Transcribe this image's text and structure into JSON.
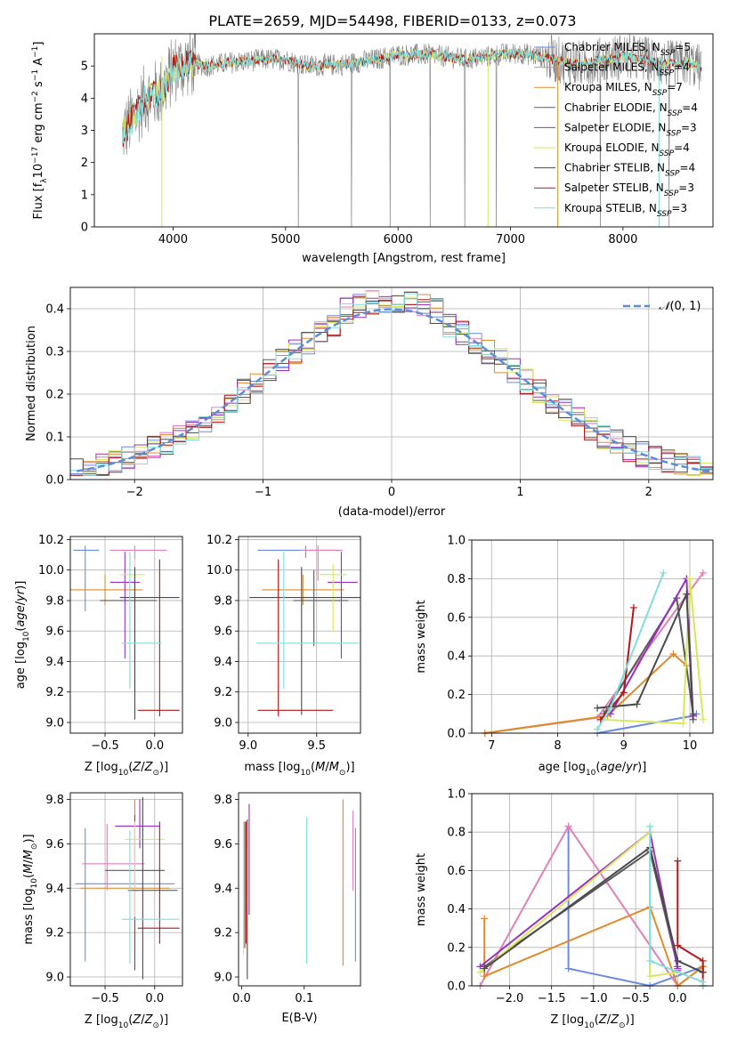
{
  "title": "PLATE=2659, MJD=54498, FIBERID=0133, z=0.073",
  "colors": {
    "Chabrier MILES": "#6a8be0",
    "Salpeter MILES": "#e07fb8",
    "Kroupa MILES": "#e08a2a",
    "Chabrier ELODIE": "#5a5a5a",
    "Salpeter ELODIE": "#9b30c0",
    "Kroupa ELODIE": "#d8e85a",
    "Chabrier STELIB": "#4a4a4a",
    "Salpeter STELIB": "#b01818",
    "Kroupa STELIB": "#7fdede",
    "data": "#808080",
    "normal": "#5b8dd9",
    "chabrier_elodie_alt": "#5a8a6a"
  },
  "chart_data": [
    {
      "id": "spectrum",
      "type": "line",
      "xlabel": "wavelength [Angstrom, rest frame]",
      "ylabel": "Flux [f",
      "xlim": [
        3300,
        8800
      ],
      "ylim": [
        0,
        6
      ],
      "xticks": [
        4000,
        5000,
        6000,
        7000,
        8000
      ],
      "yticks": [
        0,
        1,
        2,
        3,
        4,
        5
      ],
      "continuum": {
        "x": [
          3550,
          3650,
          3750,
          3900,
          4000,
          4150,
          4300,
          4500,
          4800,
          5000,
          5200,
          5500,
          5800,
          6000,
          6300,
          6600,
          6900,
          7100,
          7400,
          7600,
          8000,
          8200,
          8400,
          8600,
          8700
        ],
        "y": [
          2.9,
          3.4,
          4.0,
          4.2,
          4.9,
          5.1,
          5.0,
          5.1,
          5.2,
          5.2,
          5.0,
          5.05,
          5.2,
          5.35,
          5.35,
          5.2,
          5.35,
          5.4,
          5.2,
          5.05,
          5.3,
          5.2,
          5.05,
          5.1,
          4.9
        ]
      },
      "legend": [
        {
          "model": "Chabrier MILES",
          "label": "Chabrier MILES, N",
          "sub": "SSP",
          "tail": "=5"
        },
        {
          "model": "Salpeter MILES",
          "label": "Salpeter MILES, N",
          "sub": "SSP",
          "tail": "=4"
        },
        {
          "model": "Kroupa MILES",
          "label": "Kroupa MILES, N",
          "sub": "SSP",
          "tail": "=7"
        },
        {
          "model": "Chabrier ELODIE",
          "label": "Chabrier ELODIE, N",
          "sub": "SSP",
          "tail": "=4"
        },
        {
          "model": "Salpeter ELODIE",
          "label": "Salpeter ELODIE, N",
          "sub": "SSP",
          "tail": "=3"
        },
        {
          "model": "Kroupa ELODIE",
          "label": "Kroupa ELODIE, N",
          "sub": "SSP",
          "tail": "=4"
        },
        {
          "model": "Chabrier STELIB",
          "label": "Chabrier STELIB, N",
          "sub": "SSP",
          "tail": "=4"
        },
        {
          "model": "Salpeter STELIB",
          "label": "Salpeter STELIB, N",
          "sub": "SSP",
          "tail": "=3"
        },
        {
          "model": "Kroupa STELIB",
          "label": "Kroupa STELIB, N",
          "sub": "SSP",
          "tail": "=3"
        }
      ]
    },
    {
      "id": "residuals",
      "type": "line",
      "xlabel": "(data-model)/error",
      "ylabel": "Normed distribution",
      "xlim": [
        -2.5,
        2.5
      ],
      "ylim": [
        0,
        0.45
      ],
      "xticks": [
        -2,
        -1,
        0,
        1,
        2
      ],
      "yticks": [
        0.0,
        0.1,
        0.2,
        0.3,
        0.4
      ],
      "legend": "N(0,1)",
      "bin_width": 0.1,
      "bin_start": -2.5
    },
    {
      "id": "z_age",
      "type": "scatter",
      "xlabel": "Z [log",
      "ylabel": "age  [log",
      "xlim": [
        -0.85,
        0.28
      ],
      "ylim": [
        8.93,
        10.22
      ],
      "xticks": [
        -0.5,
        0.0
      ],
      "xticklabels": [
        "−0.5",
        "0.0"
      ],
      "yticks": [
        9.0,
        9.2,
        9.4,
        9.6,
        9.8,
        10.0,
        10.2
      ],
      "points": [
        {
          "model": "Chabrier MILES",
          "x": -0.7,
          "xerr": [
            0.12,
            0.14
          ],
          "y": 10.13,
          "yerr": [
            0.4,
            0.03
          ]
        },
        {
          "model": "Salpeter MILES",
          "x": -0.2,
          "xerr": [
            0.25,
            0.32
          ],
          "y": 10.13,
          "yerr": [
            0.1,
            0.03
          ]
        },
        {
          "model": "Kroupa MILES",
          "x": -0.5,
          "xerr": [
            0.35,
            0.38
          ],
          "y": 9.87,
          "yerr": [
            0.1,
            0.1
          ]
        },
        {
          "model": "Chabrier ELODIE",
          "x": -0.2,
          "xerr": [
            0.35,
            0.22
          ],
          "y": 9.8,
          "yerr": [
            0.6,
            0.2
          ]
        },
        {
          "model": "Salpeter ELODIE",
          "x": -0.3,
          "xerr": [
            0.15,
            0.15
          ],
          "y": 9.92,
          "yerr": [
            0.5,
            0.2
          ]
        },
        {
          "model": "Kroupa ELODIE",
          "x": -0.2,
          "xerr": [
            0.15,
            0.1
          ],
          "y": 9.97,
          "yerr": [
            0.3,
            0.1
          ]
        },
        {
          "model": "Chabrier STELIB",
          "x": -0.2,
          "xerr": [
            0.15,
            0.45
          ],
          "y": 9.82,
          "yerr": [
            0.8,
            0.2
          ]
        },
        {
          "model": "Salpeter STELIB",
          "x": 0.05,
          "xerr": [
            0.22,
            0.2
          ],
          "y": 9.08,
          "yerr": [
            0.04,
            0.99
          ]
        },
        {
          "model": "Kroupa STELIB",
          "x": -0.25,
          "xerr": [
            0.08,
            0.32
          ],
          "y": 9.52,
          "yerr": [
            0.3,
            0.6
          ]
        }
      ]
    },
    {
      "id": "mass_age",
      "type": "scatter",
      "xlabel": "mass [log",
      "ylabel": "",
      "xlim": [
        8.93,
        9.82
      ],
      "ylim": [
        8.93,
        10.22
      ],
      "xticks": [
        9.0,
        9.5
      ],
      "xticklabels": [
        "9.0",
        "9.5"
      ],
      "yticks": [
        9.0,
        9.2,
        9.4,
        9.6,
        9.8,
        10.0,
        10.2
      ],
      "points": [
        {
          "model": "Chabrier MILES",
          "x": 9.42,
          "xerr": [
            0.35,
            0.25
          ],
          "y": 10.13,
          "yerr": [
            0.05,
            0.03
          ]
        },
        {
          "model": "Salpeter MILES",
          "x": 9.51,
          "xerr": [
            0.12,
            0.18
          ],
          "y": 10.13,
          "yerr": [
            0.2,
            0.03
          ]
        },
        {
          "model": "Kroupa MILES",
          "x": 9.4,
          "xerr": [
            0.3,
            0.3
          ],
          "y": 9.87,
          "yerr": [
            0.1,
            0.1
          ]
        },
        {
          "model": "Chabrier ELODIE",
          "x": 9.48,
          "xerr": [
            0.15,
            0.25
          ],
          "y": 9.8,
          "yerr": [
            0.3,
            0.2
          ]
        },
        {
          "model": "Salpeter ELODIE",
          "x": 9.68,
          "xerr": [
            0.1,
            0.12
          ],
          "y": 9.92,
          "yerr": [
            0.5,
            0.2
          ]
        },
        {
          "model": "Kroupa ELODIE",
          "x": 9.62,
          "xerr": [
            0.1,
            0.1
          ],
          "y": 9.97,
          "yerr": [
            0.37,
            0.07
          ]
        },
        {
          "model": "Chabrier STELIB",
          "x": 9.39,
          "xerr": [
            0.38,
            0.45
          ],
          "y": 9.82,
          "yerr": [
            0.77,
            0.2
          ]
        },
        {
          "model": "Salpeter STELIB",
          "x": 9.22,
          "xerr": [
            0.15,
            0.4
          ],
          "y": 9.08,
          "yerr": [
            0.04,
            0.99
          ]
        },
        {
          "model": "Kroupa STELIB",
          "x": 9.26,
          "xerr": [
            0.2,
            0.55
          ],
          "y": 9.52,
          "yerr": [
            0.3,
            0.6
          ]
        }
      ]
    },
    {
      "id": "age_weight",
      "type": "line",
      "xlabel": "age  [log",
      "ylabel": "mass weight",
      "xlim": [
        6.7,
        10.35
      ],
      "ylim": [
        0,
        1.0
      ],
      "xticks": [
        7,
        8,
        9,
        10
      ],
      "yticks": [
        0.0,
        0.2,
        0.4,
        0.6,
        0.8,
        1.0
      ],
      "series": [
        {
          "model": "Chabrier MILES",
          "x": [
            8.6,
            10.05,
            10.1
          ],
          "y": [
            0.0,
            0.09,
            0.1
          ]
        },
        {
          "model": "Salpeter MILES",
          "x": [
            6.9,
            8.6,
            10.2
          ],
          "y": [
            0.0,
            0.08,
            0.83
          ]
        },
        {
          "model": "Kroupa MILES",
          "x": [
            6.9,
            8.75,
            9.75,
            9.95
          ],
          "y": [
            0.0,
            0.09,
            0.41,
            0.35
          ]
        },
        {
          "model": "Chabrier ELODIE",
          "x": [
            8.7,
            9.8,
            10.05
          ],
          "y": [
            0.1,
            0.7,
            0.1
          ]
        },
        {
          "model": "Salpeter ELODIE",
          "x": [
            8.8,
            9.95,
            10.05
          ],
          "y": [
            0.1,
            0.8,
            0.09
          ]
        },
        {
          "model": "Kroupa ELODIE",
          "x": [
            8.65,
            9.9,
            10.0,
            10.2
          ],
          "y": [
            0.07,
            0.05,
            0.8,
            0.07
          ]
        },
        {
          "model": "Chabrier STELIB",
          "x": [
            8.6,
            9.2,
            9.95,
            10.05
          ],
          "y": [
            0.13,
            0.15,
            0.72,
            0.07
          ]
        },
        {
          "model": "Salpeter STELIB",
          "x": [
            8.65,
            9.0,
            9.15
          ],
          "y": [
            0.07,
            0.21,
            0.65
          ]
        },
        {
          "model": "Kroupa STELIB",
          "x": [
            8.6,
            8.8,
            9.6
          ],
          "y": [
            0.02,
            0.13,
            0.83
          ]
        }
      ]
    },
    {
      "id": "z_mass",
      "type": "scatter",
      "xlabel": "Z [log",
      "ylabel": "mass [log",
      "xlim": [
        -0.85,
        0.28
      ],
      "ylim": [
        8.96,
        9.83
      ],
      "xticks": [
        -0.5,
        0.0
      ],
      "xticklabels": [
        "−0.5",
        "0.0"
      ],
      "yticks": [
        9.0,
        9.2,
        9.4,
        9.6,
        9.8
      ],
      "points": [
        {
          "model": "Chabrier MILES",
          "x": -0.7,
          "xerr": [
            0.1,
            0.9
          ],
          "y": 9.42,
          "yerr": [
            0.35,
            0.25
          ]
        },
        {
          "model": "Salpeter MILES",
          "x": -0.48,
          "xerr": [
            0.25,
            0.38
          ],
          "y": 9.51,
          "yerr": [
            0.12,
            0.18
          ]
        },
        {
          "model": "Kroupa MILES",
          "x": -0.2,
          "xerr": [
            0.55,
            0.35
          ],
          "y": 9.4,
          "yerr": [
            0.3,
            0.4
          ]
        },
        {
          "model": "Chabrier ELODIE",
          "x": -0.2,
          "xerr": [
            0.3,
            0.3
          ],
          "y": 9.48,
          "yerr": [
            0.45,
            0.25
          ]
        },
        {
          "model": "Salpeter ELODIE",
          "x": -0.15,
          "xerr": [
            0.25,
            0.2
          ],
          "y": 9.68,
          "yerr": [
            0.1,
            0.12
          ]
        },
        {
          "model": "Kroupa ELODIE",
          "x": -0.2,
          "xerr": [
            0.1,
            0.3
          ],
          "y": 9.62,
          "yerr": [
            0.35,
            0.08
          ]
        },
        {
          "model": "Chabrier STELIB",
          "x": -0.12,
          "xerr": [
            0.15,
            0.35
          ],
          "y": 9.39,
          "yerr": [
            0.4,
            0.42
          ]
        },
        {
          "model": "Salpeter STELIB",
          "x": 0.05,
          "xerr": [
            0.22,
            0.2
          ],
          "y": 9.22,
          "yerr": [
            0.07,
            0.48
          ]
        },
        {
          "model": "Kroupa STELIB",
          "x": -0.25,
          "xerr": [
            0.08,
            0.5
          ],
          "y": 9.26,
          "yerr": [
            0.2,
            0.4
          ]
        }
      ]
    },
    {
      "id": "ebv_mass",
      "type": "scatter",
      "xlabel": "E(B-V)",
      "ylabel": "",
      "xlim": [
        -0.005,
        0.19
      ],
      "ylim": [
        8.96,
        9.83
      ],
      "xticks": [
        0.0,
        0.1
      ],
      "xticklabels": [
        "0.0",
        "0.1"
      ],
      "yticks": [
        9.0,
        9.2,
        9.4,
        9.6,
        9.8
      ],
      "points": [
        {
          "model": "Chabrier MILES",
          "x": 0.182,
          "y": 9.42,
          "yerr": [
            0.35,
            0.25
          ]
        },
        {
          "model": "Salpeter MILES",
          "x": 0.178,
          "y": 9.51,
          "yerr": [
            0.12,
            0.24
          ]
        },
        {
          "model": "Kroupa MILES",
          "x": 0.162,
          "y": 9.4,
          "yerr": [
            0.35,
            0.4
          ]
        },
        {
          "model": "Chabrier ELODIE",
          "x": 0.005,
          "y": 9.48,
          "yerr": [
            0.35,
            0.22
          ]
        },
        {
          "model": "Salpeter ELODIE",
          "x": 0.012,
          "y": 9.58,
          "yerr": [
            0.3,
            0.2
          ]
        },
        {
          "model": "Kroupa ELODIE",
          "x": 0.003,
          "y": 9.55,
          "yerr": [
            0.45,
            0.15
          ]
        },
        {
          "model": "Chabrier STELIB",
          "x": 0.009,
          "y": 9.39,
          "yerr": [
            0.4,
            0.32
          ]
        },
        {
          "model": "Salpeter STELIB",
          "x": 0.007,
          "y": 9.42,
          "yerr": [
            0.27,
            0.28
          ]
        },
        {
          "model": "Kroupa STELIB",
          "x": 0.104,
          "y": 9.4,
          "yerr": [
            0.34,
            0.32
          ]
        }
      ]
    },
    {
      "id": "z_weight",
      "type": "line",
      "xlabel": "Z [log",
      "ylabel": "mass weight",
      "xlim": [
        -2.45,
        0.42
      ],
      "ylim": [
        0,
        1.0
      ],
      "xticks": [
        -2.0,
        -1.5,
        -1.0,
        -0.5,
        0.0
      ],
      "xticklabels": [
        "−2.0",
        "−1.5",
        "−1.0",
        "−0.5",
        "0.0"
      ],
      "yticks": [
        0.0,
        0.2,
        0.4,
        0.6,
        0.8,
        1.0
      ],
      "series": [
        {
          "model": "Chabrier MILES",
          "x": [
            -1.3,
            -1.3,
            -0.33,
            0.3,
            0.3
          ],
          "y": [
            0.83,
            0.09,
            0.0,
            0.1,
            0.07
          ]
        },
        {
          "model": "Salpeter MILES",
          "x": [
            -2.35,
            -1.3,
            0.0,
            0.3,
            0.3
          ],
          "y": [
            0.0,
            0.83,
            0.0,
            0.1,
            0.07
          ]
        },
        {
          "model": "Kroupa MILES",
          "x": [
            -2.3,
            -2.3,
            -0.33,
            0.0,
            0.3,
            0.3
          ],
          "y": [
            0.35,
            0.05,
            0.41,
            0.0,
            0.1,
            0.07
          ]
        },
        {
          "model": "Chabrier ELODIE",
          "x": [
            -2.3,
            -0.33,
            0.0,
            0.0
          ],
          "y": [
            0.1,
            0.7,
            0.1,
            0.09
          ]
        },
        {
          "model": "Salpeter ELODIE",
          "x": [
            -2.35,
            -0.33,
            0.0,
            0.0
          ],
          "y": [
            0.1,
            0.8,
            0.09,
            0.08
          ]
        },
        {
          "model": "Kroupa ELODIE",
          "x": [
            -2.35,
            -0.33,
            -0.33,
            0.0
          ],
          "y": [
            0.07,
            0.8,
            0.05,
            0.07
          ]
        },
        {
          "model": "Chabrier STELIB",
          "x": [
            -2.3,
            -0.33,
            0.0,
            0.3
          ],
          "y": [
            0.09,
            0.72,
            0.13,
            0.07
          ]
        },
        {
          "model": "Salpeter STELIB",
          "x": [
            0.0,
            0.0,
            0.3,
            0.3
          ],
          "y": [
            0.65,
            0.21,
            0.13,
            0.0
          ]
        },
        {
          "model": "Kroupa STELIB",
          "x": [
            -0.33,
            -0.33,
            0.3,
            0.3
          ],
          "y": [
            0.83,
            0.13,
            0.02,
            0.0
          ]
        }
      ]
    }
  ]
}
